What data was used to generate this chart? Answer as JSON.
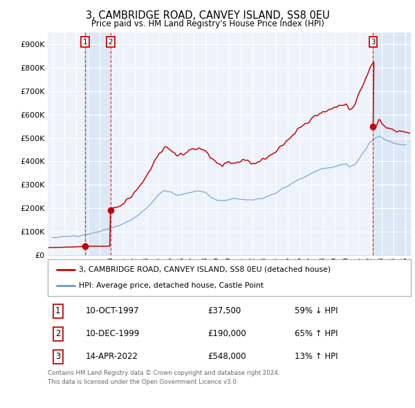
{
  "title": "3, CAMBRIDGE ROAD, CANVEY ISLAND, SS8 0EU",
  "subtitle": "Price paid vs. HM Land Registry's House Price Index (HPI)",
  "transactions": [
    {
      "num": 1,
      "date": "10-OCT-1997",
      "price": 37500,
      "year_f": 1997.79,
      "pct": "59%",
      "dir": "↓"
    },
    {
      "num": 2,
      "date": "10-DEC-1999",
      "price": 190000,
      "year_f": 1999.94,
      "pct": "65%",
      "dir": "↑"
    },
    {
      "num": 3,
      "date": "14-APR-2022",
      "price": 548000,
      "year_f": 2022.29,
      "pct": "13%",
      "dir": "↑"
    }
  ],
  "legend_price": "3, CAMBRIDGE ROAD, CANVEY ISLAND, SS8 0EU (detached house)",
  "legend_hpi": "HPI: Average price, detached house, Castle Point",
  "footer1": "Contains HM Land Registry data © Crown copyright and database right 2024.",
  "footer2": "This data is licensed under the Open Government Licence v3.0.",
  "price_color": "#cc0000",
  "hpi_color": "#6699cc",
  "shade_color": "#dce8f5",
  "ylim": [
    0,
    950000
  ],
  "xlim": [
    1994.6,
    2025.5
  ],
  "bg_color": "#eef3fb",
  "plot_bg": "#ffffff",
  "table_rows": [
    {
      "num": 1,
      "date": "10-OCT-1997",
      "price": "£37,500",
      "pct": "59% ↓ HPI"
    },
    {
      "num": 2,
      "date": "10-DEC-1999",
      "price": "£190,000",
      "pct": "65% ↑ HPI"
    },
    {
      "num": 3,
      "date": "14-APR-2022",
      "price": "£548,000",
      "pct": "13% ↑ HPI"
    }
  ]
}
